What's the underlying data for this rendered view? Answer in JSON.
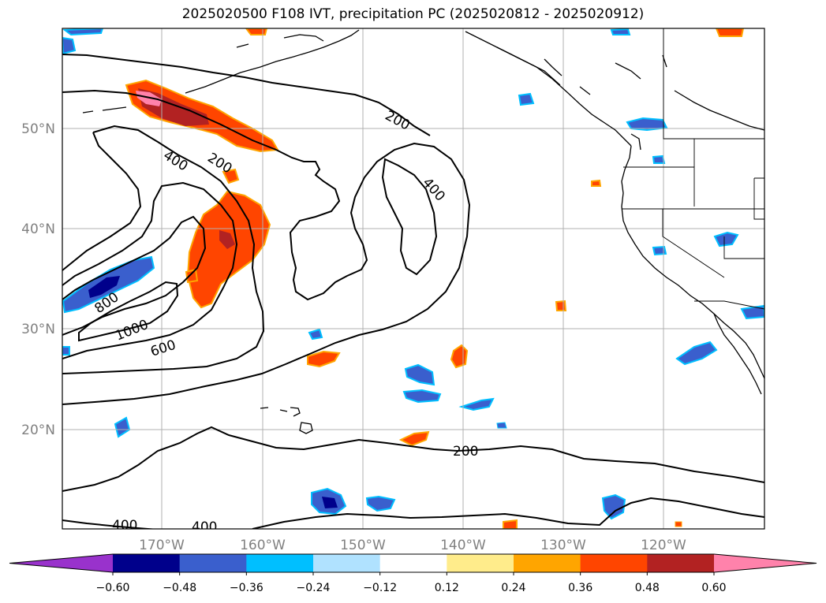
{
  "title": "2025020500 F108 IVT, precipitation PC (2025020812 - 2025020912)",
  "map": {
    "lat_labels": [
      "50°N",
      "40°N",
      "30°N",
      "20°N"
    ],
    "lon_labels": [
      "170°W",
      "160°W",
      "150°W",
      "140°W",
      "130°W",
      "120°W"
    ],
    "ivt_contour_labels": [
      "200",
      "400",
      "200",
      "400",
      "800",
      "1000",
      "600",
      "200",
      "400",
      "400"
    ]
  },
  "colorbar": {
    "ticks": [
      "−0.60",
      "−0.48",
      "−0.36",
      "−0.24",
      "−0.12",
      "0.12",
      "0.24",
      "0.36",
      "0.48",
      "0.60"
    ],
    "colors": [
      "#9932cc",
      "#00008b",
      "#3a5fcd",
      "#00bfff",
      "#b0e2ff",
      "#ffffff",
      "#ffec8b",
      "#ffa500",
      "#ff4500",
      "#b22222",
      "#ff82ab"
    ]
  }
}
